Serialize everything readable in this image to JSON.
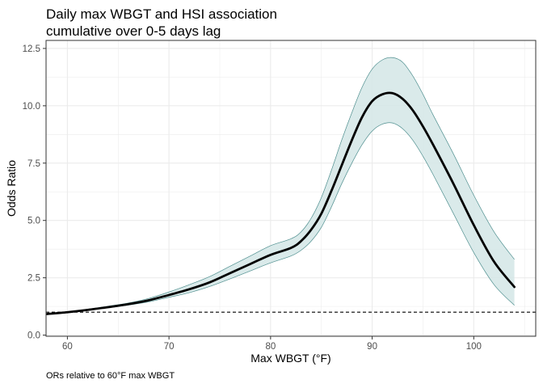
{
  "chart_data": {
    "type": "line",
    "title_line1": "Daily max WBGT and HSI association",
    "title_line2": "cumulative over 0-5 days lag",
    "xlabel": "Max WBGT (°F)",
    "ylabel": "Odds Ratio",
    "caption": "ORs relative to 60°F max WBGT",
    "xlim": [
      57.9,
      106.1
    ],
    "ylim": [
      -0.05,
      12.85
    ],
    "x_ticks": [
      60,
      70,
      80,
      90,
      100
    ],
    "y_ticks": [
      0.0,
      2.5,
      5.0,
      7.5,
      10.0,
      12.5
    ],
    "x_tick_labels": [
      "60",
      "70",
      "80",
      "90",
      "100"
    ],
    "y_tick_labels": [
      "0.0",
      "2.5",
      "5.0",
      "7.5",
      "10.0",
      "12.5"
    ],
    "reference_line": 1.0,
    "grid": true,
    "colors": {
      "line": "#000000",
      "band_fill": "#d6e8e8",
      "band_edge": "#4f8f8f",
      "grid": "#ebebeb",
      "panel_border": "#333333"
    },
    "series": [
      {
        "x": [
          58,
          60,
          62,
          64,
          66,
          68,
          70,
          72,
          74,
          76,
          78,
          80,
          82,
          83,
          84,
          85,
          86,
          87,
          88,
          89,
          90,
          91,
          92,
          93,
          94,
          95,
          96,
          98,
          100,
          102,
          104
        ],
        "y": [
          0.92,
          1.0,
          1.1,
          1.22,
          1.35,
          1.52,
          1.75,
          2.0,
          2.3,
          2.7,
          3.1,
          3.5,
          3.8,
          4.1,
          4.6,
          5.3,
          6.3,
          7.4,
          8.5,
          9.5,
          10.2,
          10.5,
          10.55,
          10.3,
          9.8,
          9.1,
          8.3,
          6.6,
          4.8,
          3.2,
          2.1
        ],
        "lower": [
          0.9,
          1.0,
          1.08,
          1.19,
          1.31,
          1.45,
          1.65,
          1.85,
          2.12,
          2.45,
          2.8,
          3.15,
          3.45,
          3.7,
          4.1,
          4.7,
          5.6,
          6.6,
          7.5,
          8.3,
          8.9,
          9.2,
          9.25,
          9.0,
          8.5,
          7.8,
          7.0,
          5.3,
          3.6,
          2.2,
          1.3
        ],
        "upper": [
          0.95,
          1.0,
          1.13,
          1.26,
          1.4,
          1.6,
          1.88,
          2.2,
          2.55,
          3.0,
          3.45,
          3.9,
          4.2,
          4.5,
          5.1,
          6.0,
          7.2,
          8.5,
          9.7,
          10.8,
          11.6,
          12.0,
          12.1,
          11.9,
          11.3,
          10.5,
          9.6,
          7.9,
          6.1,
          4.5,
          3.3
        ]
      }
    ]
  }
}
